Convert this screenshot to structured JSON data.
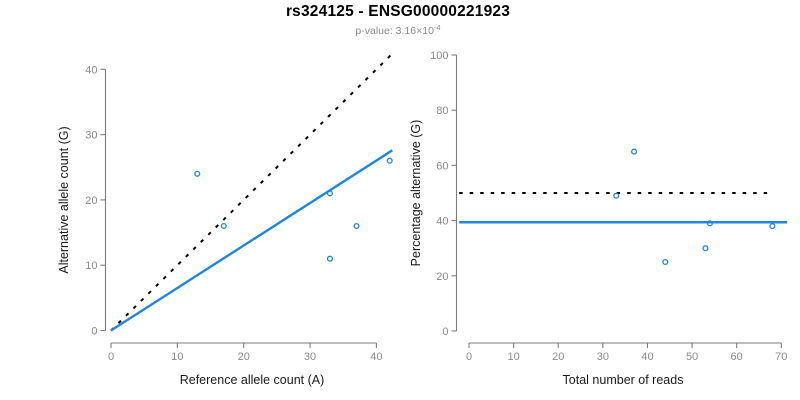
{
  "header": {
    "title": "rs324125 - ENSG00000221923",
    "pvalue_prefix": "p-value: 3.16×10",
    "pvalue_exponent": "-4"
  },
  "colors": {
    "accent_blue": "#1E86E0",
    "dotted_black": "#000000",
    "axis_gray": "#7d7d7d",
    "tick_label_gray": "#8a8a8a",
    "axis_title_color": "#1a1a1a",
    "subtitle_gray": "#8c8c8c",
    "background": "#ffffff"
  },
  "chart_data": [
    {
      "type": "scatter",
      "name": "allele-counts-scatter",
      "xlabel": "Reference allele count (A)",
      "ylabel": "Alternative allele count (G)",
      "xlim": [
        0,
        42.5
      ],
      "ylim": [
        0,
        42.5
      ],
      "xticks": [
        0,
        10,
        20,
        30,
        40
      ],
      "yticks": [
        0,
        10,
        20,
        30,
        40
      ],
      "grid": false,
      "points": [
        [
          13,
          24
        ],
        [
          17,
          16
        ],
        [
          33,
          11
        ],
        [
          33,
          21
        ],
        [
          37,
          16
        ],
        [
          42,
          26
        ]
      ],
      "lines": [
        {
          "name": "identity-line",
          "style": "dotted",
          "color": "#000000",
          "x": [
            0,
            42.2
          ],
          "y": [
            0,
            42.2
          ]
        },
        {
          "name": "regression-line",
          "style": "solid",
          "color": "#1E86E0",
          "x": [
            0,
            42.4
          ],
          "y": [
            0,
            27.6
          ],
          "slope": 0.65
        }
      ]
    },
    {
      "type": "scatter",
      "name": "percentage-vs-reads-scatter",
      "xlabel": "Total number of reads",
      "ylabel": "Percentage alternative (G)",
      "xlim": [
        0,
        70
      ],
      "ylim": [
        0,
        100
      ],
      "xticks": [
        0,
        10,
        20,
        30,
        40,
        50,
        60,
        70
      ],
      "yticks": [
        0,
        20,
        40,
        60,
        80,
        100
      ],
      "grid": false,
      "points": [
        [
          33,
          49
        ],
        [
          37,
          65
        ],
        [
          44,
          25
        ],
        [
          53,
          30
        ],
        [
          54,
          39
        ],
        [
          68,
          38
        ]
      ],
      "lines": [
        {
          "name": "fifty-percent-line",
          "style": "dotted",
          "color": "#000000",
          "x": [
            -2.2,
            67.3
          ],
          "y": [
            50,
            50
          ]
        },
        {
          "name": "mean-percentage-line",
          "style": "solid",
          "color": "#1E86E0",
          "x": [
            -2.2,
            71.3
          ],
          "y": [
            39.4,
            39.4
          ]
        }
      ]
    }
  ]
}
